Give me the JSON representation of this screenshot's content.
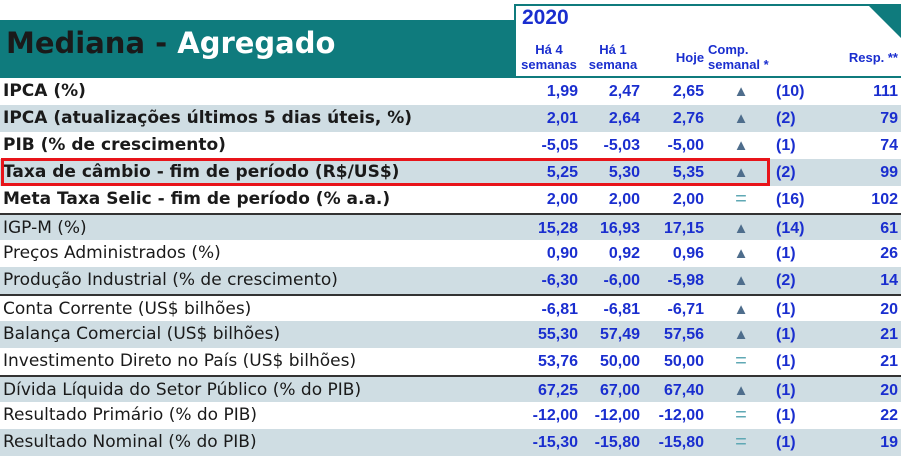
{
  "title": {
    "prefix": "Mediana - ",
    "accent": "Agregado"
  },
  "year": "2020",
  "columns": {
    "ha4": [
      "Há 4",
      "semanas"
    ],
    "ha1": [
      "Há 1",
      "semana"
    ],
    "hoje": "Hoje",
    "comp": [
      "Comp.",
      "semanal *"
    ],
    "resp": "Resp. **"
  },
  "rows": [
    {
      "label": "IPCA (%)",
      "ha4": "1,99",
      "ha1": "2,47",
      "hoje": "2,65",
      "trend": "▲",
      "comp": "(10)",
      "resp": "111"
    },
    {
      "label": "IPCA (atualizações últimos 5 dias úteis, %)",
      "ha4": "2,01",
      "ha1": "2,64",
      "hoje": "2,76",
      "trend": "▲",
      "comp": "(2)",
      "resp": "79"
    },
    {
      "label": "PIB (% de crescimento)",
      "ha4": "-5,05",
      "ha1": "-5,03",
      "hoje": "-5,00",
      "trend": "▲",
      "comp": "(1)",
      "resp": "74"
    },
    {
      "label": "Taxa de câmbio - fim de período (R$/US$)",
      "ha4": "5,25",
      "ha1": "5,30",
      "hoje": "5,35",
      "trend": "▲",
      "comp": "(2)",
      "resp": "99"
    },
    {
      "label": "Meta Taxa Selic - fim de período (% a.a.)",
      "ha4": "2,00",
      "ha1": "2,00",
      "hoje": "2,00",
      "trend": "=",
      "comp": "(16)",
      "resp": "102"
    },
    {
      "label": "IGP-M (%)",
      "ha4": "15,28",
      "ha1": "16,93",
      "hoje": "17,15",
      "trend": "▲",
      "comp": "(14)",
      "resp": "61"
    },
    {
      "label": "Preços Administrados (%)",
      "ha4": "0,90",
      "ha1": "0,92",
      "hoje": "0,96",
      "trend": "▲",
      "comp": "(1)",
      "resp": "26"
    },
    {
      "label": "Produção Industrial (% de crescimento)",
      "ha4": "-6,30",
      "ha1": "-6,00",
      "hoje": "-5,98",
      "trend": "▲",
      "comp": "(2)",
      "resp": "14"
    },
    {
      "label": "Conta Corrente (US$ bilhões)",
      "ha4": "-6,81",
      "ha1": "-6,81",
      "hoje": "-6,71",
      "trend": "▲",
      "comp": "(1)",
      "resp": "20"
    },
    {
      "label": "Balança Comercial (US$ bilhões)",
      "ha4": "55,30",
      "ha1": "57,49",
      "hoje": "57,56",
      "trend": "▲",
      "comp": "(1)",
      "resp": "21"
    },
    {
      "label": "Investimento Direto no País (US$ bilhões)",
      "ha4": "53,76",
      "ha1": "50,00",
      "hoje": "50,00",
      "trend": "=",
      "comp": "(1)",
      "resp": "21"
    },
    {
      "label": "Dívida Líquida do Setor Público (% do PIB)",
      "ha4": "67,25",
      "ha1": "67,00",
      "hoje": "67,40",
      "trend": "▲",
      "comp": "(1)",
      "resp": "20"
    },
    {
      "label": "Resultado Primário (% do PIB)",
      "ha4": "-12,00",
      "ha1": "-12,00",
      "hoje": "-12,00",
      "trend": "=",
      "comp": "(1)",
      "resp": "22"
    },
    {
      "label": "Resultado Nominal (% do PIB)",
      "ha4": "-15,30",
      "ha1": "-15,80",
      "hoje": "-15,80",
      "trend": "=",
      "comp": "(1)",
      "resp": "19"
    }
  ],
  "colors": {
    "teal": "#0f7b7d",
    "blue": "#1a2ecf",
    "stripe": "#cfdde3",
    "highlight": "#e8141a"
  }
}
